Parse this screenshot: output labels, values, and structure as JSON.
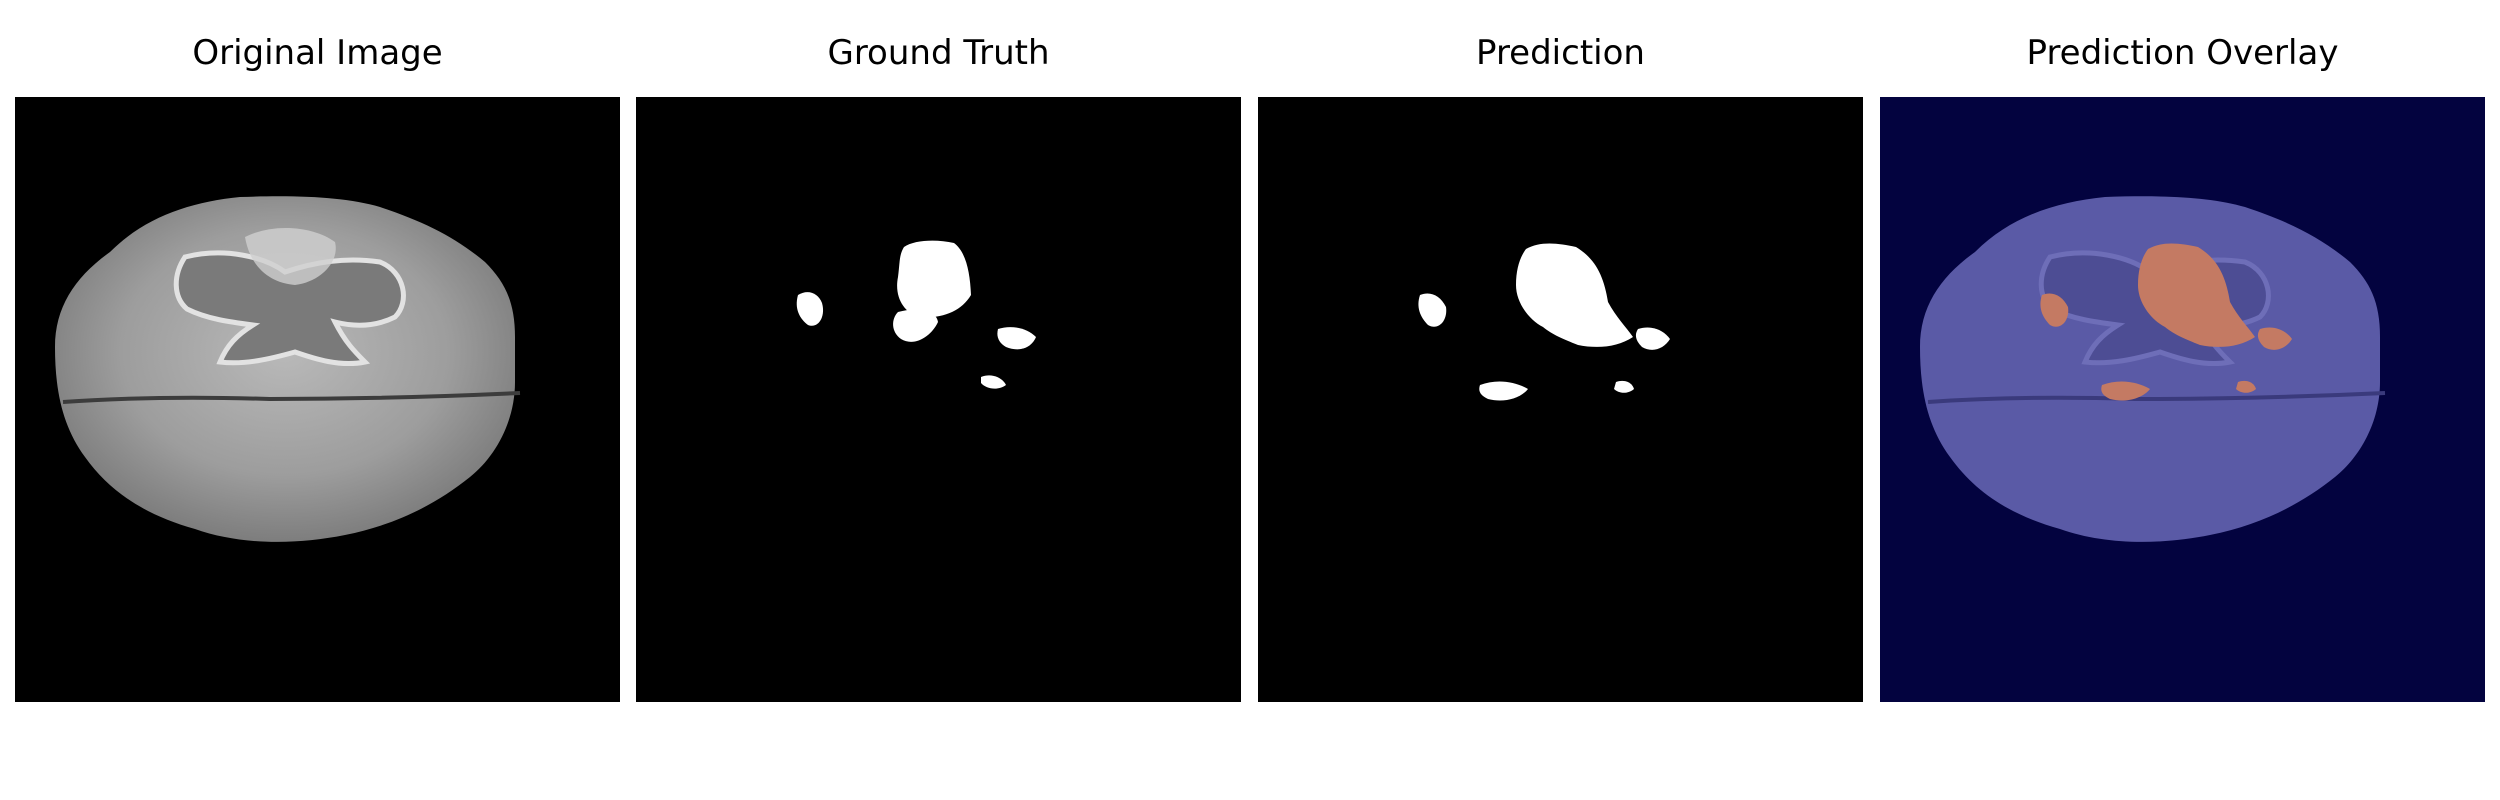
{
  "figure": {
    "panels": [
      {
        "title": "Original Image"
      },
      {
        "title": "Ground Truth"
      },
      {
        "title": "Prediction"
      },
      {
        "title": "Prediction Overlay"
      }
    ]
  },
  "colors": {
    "background": "#000000",
    "overlay_background": "#03033f",
    "mask": "#ffffff",
    "overlay_brain": "#5a5aa6",
    "overlay_tumor": "#c47a63"
  }
}
